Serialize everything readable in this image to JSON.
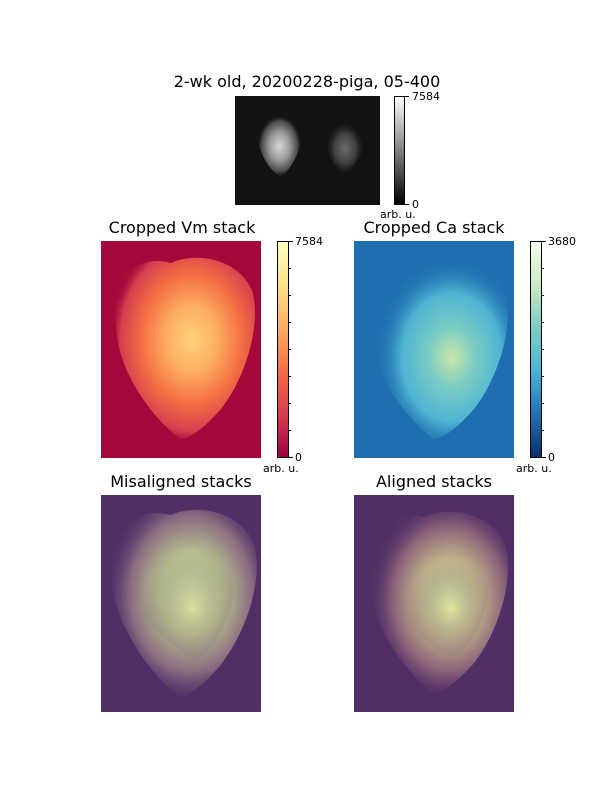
{
  "figure": {
    "top": {
      "title": "2-wk old, 20200228-piga, 05-400",
      "colorbar": {
        "max_label": "7584",
        "min_label": "0",
        "unit_label": "arb. u."
      }
    },
    "vm": {
      "title": "Cropped Vm stack",
      "colorbar": {
        "max_label": "7584",
        "min_label": "0",
        "unit_label": "arb. u."
      }
    },
    "ca": {
      "title": "Cropped Ca stack",
      "colorbar": {
        "max_label": "3680",
        "min_label": "0",
        "unit_label": "arb. u."
      }
    },
    "misaligned": {
      "title": "Misaligned stacks"
    },
    "aligned": {
      "title": "Aligned stacks"
    }
  },
  "colors": {
    "vm_cmap": [
      "#9e0142",
      "#d53e4f",
      "#f46d43",
      "#fdae61",
      "#fee08b",
      "#ffffbf"
    ],
    "ca_cmap": [
      "#08306b",
      "#2171b5",
      "#4eb3d3",
      "#7bccc4",
      "#ccebc5",
      "#f7fcf0"
    ],
    "overlay_bg": "#4f2f66"
  }
}
